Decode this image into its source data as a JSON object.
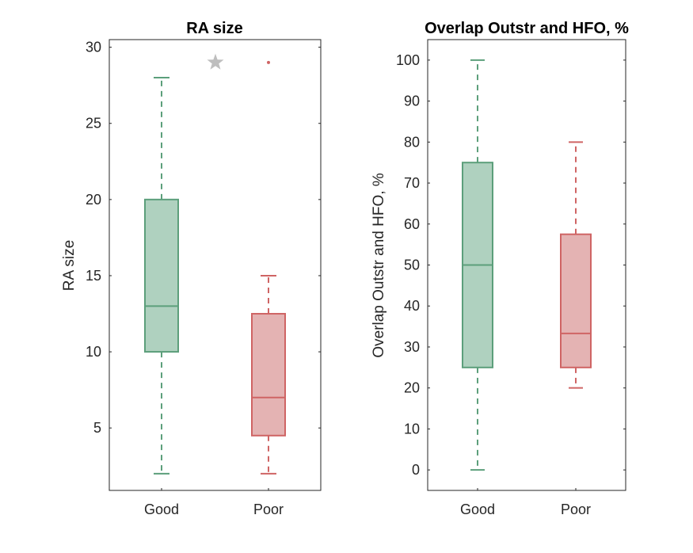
{
  "colors": {
    "good_fill": "#afd1bf",
    "good_edge": "#5c9f7b",
    "poor_fill": "#e4b3b3",
    "poor_edge": "#cf6464",
    "outlier_star": "#bebebe",
    "axis": "#262626"
  },
  "chart_data": [
    {
      "type": "box",
      "title": "RA size",
      "ylabel": "RA size",
      "xlabel": "",
      "categories": [
        "Good",
        "Poor"
      ],
      "ylim": [
        0.9,
        30.5
      ],
      "yticks": [
        5,
        10,
        15,
        20,
        25,
        30
      ],
      "grid": false,
      "boxes": [
        {
          "category": "Good",
          "whisker_low": 2,
          "q1": 10,
          "median": 13,
          "q3": 20,
          "whisker_high": 28,
          "outliers": [
            29
          ],
          "outlier_marker": "star"
        },
        {
          "category": "Poor",
          "whisker_low": 2,
          "q1": 4.5,
          "median": 7,
          "q3": 12.5,
          "whisker_high": 15,
          "outliers": [
            29
          ],
          "outlier_marker": "dot"
        }
      ]
    },
    {
      "type": "box",
      "title": "Overlap Outstr and HFO, %",
      "ylabel": "Overlap Outstr and HFO, %",
      "xlabel": "",
      "categories": [
        "Good",
        "Poor"
      ],
      "ylim": [
        -5,
        105
      ],
      "yticks": [
        0,
        10,
        20,
        30,
        40,
        50,
        60,
        70,
        80,
        90,
        100
      ],
      "grid": false,
      "boxes": [
        {
          "category": "Good",
          "whisker_low": 0,
          "q1": 25,
          "median": 50,
          "q3": 75,
          "whisker_high": 100,
          "outliers": []
        },
        {
          "category": "Poor",
          "whisker_low": 20,
          "q1": 25,
          "median": 33.3,
          "q3": 57.5,
          "whisker_high": 80,
          "outliers": []
        }
      ]
    }
  ]
}
